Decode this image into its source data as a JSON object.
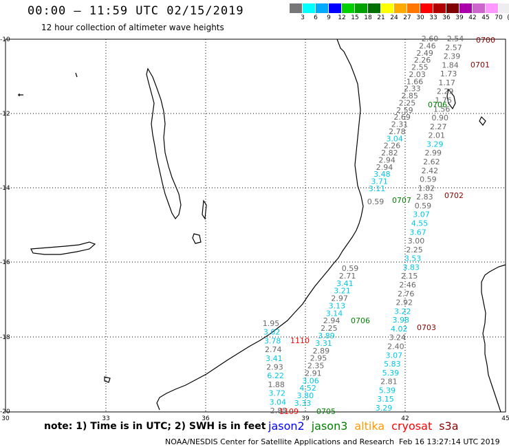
{
  "header": {
    "title": "00:00 – 11:59 UTC 02/15/2019",
    "subtitle": "12 hour collection of altimeter wave heights"
  },
  "colorbar": {
    "colors": [
      "#777777",
      "#00ffff",
      "#00aaff",
      "#0000ff",
      "#00d000",
      "#00a000",
      "#007000",
      "#ffff00",
      "#ffaa00",
      "#ff7700",
      "#ff0000",
      "#b00000",
      "#800000",
      "#aa00aa",
      "#cc66cc",
      "#ff99ff",
      "#eeeeee"
    ],
    "ticks": [
      "3",
      "6",
      "9",
      "12",
      "15",
      "18",
      "21",
      "24",
      "27",
      "30",
      "33",
      "36",
      "39",
      "42",
      "45",
      "70",
      "(ft)"
    ]
  },
  "axes": {
    "lon_labels": [
      "30",
      "33",
      "36",
      "39",
      "42",
      "45"
    ],
    "lat_labels": [
      "-10",
      "-12",
      "-14",
      "-16",
      "-18",
      "-20"
    ]
  },
  "markers": [
    {
      "text": "0700",
      "color": "#8b0000"
    },
    {
      "text": "0701",
      "color": "#8b0000"
    },
    {
      "text": "0706",
      "color": "#008000"
    },
    {
      "text": "0702",
      "color": "#8b0000"
    },
    {
      "text": "0707",
      "color": "#008000"
    },
    {
      "text": "0706",
      "color": "#008000"
    },
    {
      "text": "0703",
      "color": "#8b0000"
    },
    {
      "text": "1110",
      "color": "#ff0000"
    },
    {
      "text": "1109",
      "color": "#ff0000"
    },
    {
      "text": "0705",
      "color": "#008000"
    }
  ],
  "tracks": {
    "track_a": [
      "2.60",
      "2.46",
      "2.49",
      "2.26",
      "2.55",
      "2.03",
      "1.66",
      "2.33",
      "2.85",
      "2.25",
      "2.59",
      "2.69",
      "2.31",
      "2.78",
      "3.04",
      "2.26",
      "2.82",
      "2.94",
      "2.94",
      "3.48",
      "3.71",
      "3.11"
    ],
    "track_a_colors": [
      "g",
      "g",
      "g",
      "g",
      "g",
      "g",
      "g",
      "g",
      "g",
      "g",
      "g",
      "g",
      "g",
      "g",
      "c",
      "g",
      "g",
      "g",
      "g",
      "c",
      "c",
      "c"
    ],
    "track_b": [
      "2.54",
      "2.57",
      "2.39",
      "1.84",
      "1.73",
      "1.17",
      "2.29",
      "1.76",
      "1.56",
      "0.90",
      "2.27",
      "2.01",
      "3.29",
      "2.99",
      "2.62",
      "2.42",
      "0.59",
      "1.82",
      "2.83",
      "0.59",
      "3.07",
      "4.55",
      "3.67",
      "3.00",
      "2.25",
      "3.53",
      "3.83",
      "2.15",
      "2.46",
      "2.76",
      "2.92",
      "3.22",
      "3.98",
      "4.02",
      "3.24",
      "2.40",
      "3.07",
      "5.83",
      "5.39",
      "2.81",
      "5.39",
      "3.15",
      "3.29"
    ],
    "track_b_colors": [
      "g",
      "g",
      "g",
      "g",
      "g",
      "g",
      "g",
      "g",
      "g",
      "g",
      "g",
      "g",
      "c",
      "g",
      "g",
      "g",
      "g",
      "g",
      "g",
      "g",
      "c",
      "c",
      "c",
      "g",
      "g",
      "c",
      "c",
      "g",
      "g",
      "g",
      "g",
      "c",
      "c",
      "c",
      "g",
      "g",
      "c",
      "c",
      "c",
      "g",
      "c",
      "c",
      "c"
    ],
    "track_c": [
      "0.59",
      "2.71",
      "3.41",
      "3.21",
      "2.97",
      "3.13",
      "3.14",
      "2.94",
      "2.25",
      "3.89",
      "3.31",
      "2.89",
      "2.95",
      "2.35",
      "2.91",
      "3.06",
      "4.52",
      "3.80",
      "3.33"
    ],
    "track_c_colors": [
      "g",
      "g",
      "c",
      "c",
      "g",
      "c",
      "c",
      "g",
      "g",
      "c",
      "c",
      "g",
      "g",
      "g",
      "g",
      "c",
      "c",
      "c",
      "c"
    ],
    "track_d": [
      "1.95",
      "3.02",
      "3.78",
      "2.74",
      "3.41",
      "2.93",
      "6.22",
      "1.88",
      "3.72",
      "3.04",
      "2.85"
    ],
    "track_d_colors": [
      "g",
      "c",
      "c",
      "g",
      "c",
      "g",
      "c",
      "g",
      "c",
      "c",
      "g"
    ],
    "lone": "0.59"
  },
  "footer": {
    "note": "note: 1) Time is in UTC; 2) SWH is in feet",
    "satellites": [
      {
        "name": "jason2",
        "color": "#0000ff"
      },
      {
        "name": "jason3",
        "color": "#008000"
      },
      {
        "name": "altika",
        "color": "#ff9900"
      },
      {
        "name": "cryosat",
        "color": "#ff0000"
      },
      {
        "name": "s3a",
        "color": "#8b0000"
      }
    ],
    "credit": "NOAA/NESDIS Center for Satellite Applications and Research",
    "timestamp": "Feb 16 13:27:14 UTC 2019"
  }
}
